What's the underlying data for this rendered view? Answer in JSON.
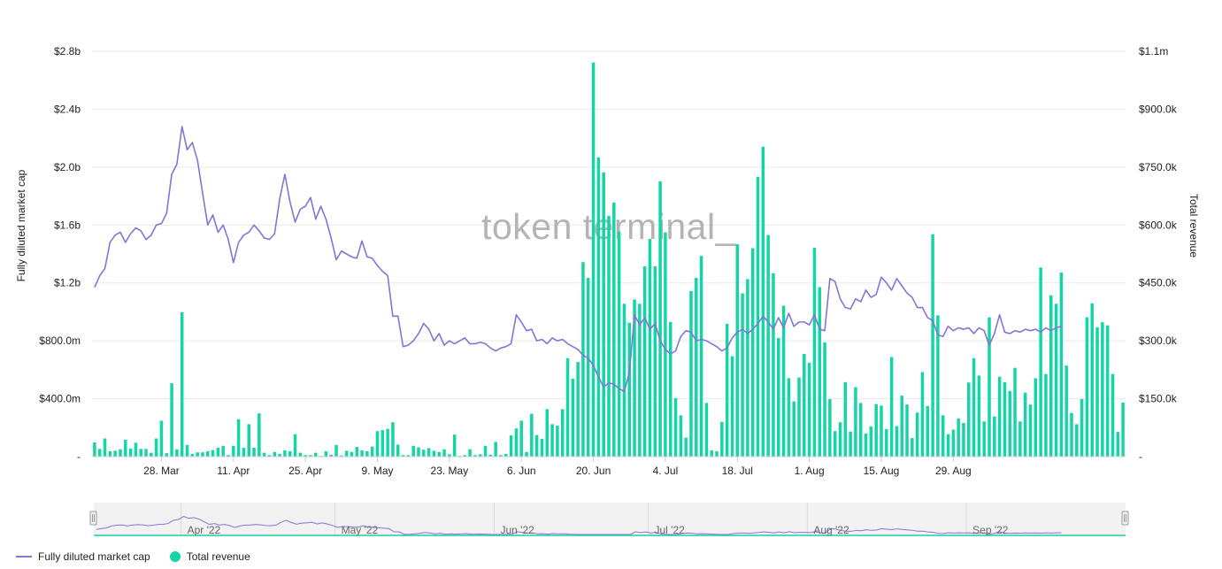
{
  "watermark": "token terminal_",
  "legend": {
    "line_label": "Fully diluted market cap",
    "bar_label": "Total revenue"
  },
  "navigator": {
    "labels": [
      "Apr '22",
      "May '22",
      "Jun '22",
      "Jul '22",
      "Aug '22",
      "Sep '22"
    ]
  },
  "colors": {
    "line": "#8673d8",
    "bar": "#14d5a6",
    "grid": "#e9e9e9"
  },
  "chart_data": {
    "type": "bar",
    "start_date": "2022-03-15",
    "interval": "1 day",
    "x_ticks": [
      "28. Mar",
      "11. Apr",
      "25. Apr",
      "9. May",
      "23. May",
      "6. Jun",
      "20. Jun",
      "4. Jul",
      "18. Jul",
      "1. Aug",
      "15. Aug",
      "29. Aug"
    ],
    "y_left": {
      "label": "Fully diluted market cap",
      "ticks": [
        "-",
        "$400.0m",
        "$800.0m",
        "$1.2b",
        "$1.6b",
        "$2.0b",
        "$2.4b",
        "$2.8b"
      ],
      "ylim": [
        0,
        2.8
      ],
      "unit": "billions USD"
    },
    "y_right": {
      "label": "Total revenue",
      "ticks": [
        "-",
        "$150.0k",
        "$300.0k",
        "$450.0k",
        "$600.0k",
        "$750.0k",
        "$900.0k",
        "$1.1m"
      ],
      "ylim": [
        0,
        1050
      ],
      "unit": "thousands USD"
    },
    "grid": true,
    "legend_position": "bottom-left",
    "series": [
      {
        "name": "Fully diluted market cap",
        "type": "line",
        "axis": "left",
        "values": [
          1.17,
          1.25,
          1.3,
          1.48,
          1.53,
          1.55,
          1.48,
          1.54,
          1.58,
          1.56,
          1.5,
          1.53,
          1.6,
          1.61,
          1.68,
          1.95,
          2.02,
          2.28,
          2.12,
          2.17,
          2.05,
          1.82,
          1.6,
          1.67,
          1.55,
          1.6,
          1.5,
          1.34,
          1.48,
          1.53,
          1.55,
          1.6,
          1.56,
          1.51,
          1.5,
          1.54,
          1.78,
          1.95,
          1.76,
          1.62,
          1.71,
          1.73,
          1.79,
          1.64,
          1.73,
          1.64,
          1.51,
          1.36,
          1.42,
          1.4,
          1.38,
          1.37,
          1.49,
          1.38,
          1.37,
          1.32,
          1.28,
          1.25,
          0.97,
          0.97,
          0.76,
          0.77,
          0.8,
          0.85,
          0.92,
          0.88,
          0.8,
          0.85,
          0.77,
          0.8,
          0.78,
          0.8,
          0.82,
          0.78,
          0.78,
          0.79,
          0.78,
          0.75,
          0.73,
          0.75,
          0.76,
          0.78,
          0.98,
          0.93,
          0.87,
          0.88,
          0.8,
          0.81,
          0.78,
          0.82,
          0.8,
          0.81,
          0.78,
          0.76,
          0.74,
          0.7,
          0.68,
          0.63,
          0.55,
          0.48,
          0.51,
          0.5,
          0.47,
          0.45,
          0.58,
          0.98,
          0.91,
          0.96,
          0.88,
          0.92,
          0.8,
          0.74,
          0.71,
          0.73,
          0.83,
          0.87,
          0.86,
          0.8,
          0.81,
          0.8,
          0.78,
          0.76,
          0.73,
          0.75,
          0.82,
          0.86,
          0.88,
          0.85,
          0.88,
          0.92,
          0.97,
          0.93,
          0.88,
          0.96,
          0.89,
          0.99,
          0.9,
          0.93,
          0.93,
          0.91,
          0.98,
          0.88,
          0.87,
          1.23,
          1.21,
          1.09,
          1.03,
          1.02,
          1.09,
          1.07,
          1.15,
          1.1,
          1.12,
          1.24,
          1.2,
          1.15,
          1.23,
          1.18,
          1.13,
          1.1,
          1.03,
          1.03,
          0.96,
          0.94,
          0.84,
          0.83,
          0.9,
          0.87,
          0.89,
          0.88,
          0.89,
          0.85,
          0.89,
          0.87,
          0.77,
          0.85,
          0.98,
          0.86,
          0.85,
          0.87,
          0.86,
          0.88,
          0.87,
          0.88,
          0.86,
          0.89,
          0.87,
          0.89,
          0.9
        ]
      },
      {
        "name": "Total revenue",
        "type": "bar",
        "axis": "right",
        "values": [
          37,
          20,
          47,
          14,
          15,
          19,
          44,
          21,
          36,
          20,
          20,
          10,
          47,
          93,
          9,
          190,
          19,
          374,
          30,
          7,
          11,
          11,
          14,
          17,
          23,
          28,
          4,
          28,
          97,
          23,
          84,
          23,
          112,
          10,
          4,
          12,
          7,
          16,
          14,
          58,
          10,
          4,
          4,
          10,
          2,
          14,
          5,
          30,
          3,
          15,
          12,
          25,
          16,
          14,
          26,
          66,
          69,
          72,
          89,
          31,
          4,
          4,
          28,
          24,
          18,
          22,
          15,
          12,
          19,
          6,
          57,
          2,
          4,
          19,
          4,
          6,
          28,
          5,
          38,
          4,
          7,
          55,
          73,
          93,
          12,
          111,
          56,
          46,
          123,
          84,
          80,
          123,
          255,
          202,
          245,
          504,
          463,
          1021,
          775,
          736,
          624,
          658,
          583,
          396,
          347,
          407,
          396,
          493,
          564,
          493,
          713,
          581,
          349,
          151,
          107,
          49,
          429,
          463,
          520,
          139,
          16,
          14,
          90,
          344,
          260,
          550,
          423,
          460,
          540,
          725,
          803,
          574,
          475,
          307,
          391,
          203,
          143,
          205,
          266,
          243,
          541,
          439,
          296,
          149,
          66,
          89,
          193,
          65,
          180,
          139,
          60,
          78,
          136,
          132,
          71,
          258,
          79,
          158,
          135,
          48,
          114,
          219,
          131,
          576,
          366,
          107,
          58,
          70,
          99,
          87,
          192,
          255,
          210,
          91,
          361,
          104,
          207,
          193,
          170,
          230,
          91,
          166,
          135,
          203,
          490,
          214,
          418,
          396,
          477,
          236,
          113,
          84,
          149,
          361,
          397,
          335,
          348,
          340,
          214,
          64,
          140
        ]
      }
    ]
  }
}
